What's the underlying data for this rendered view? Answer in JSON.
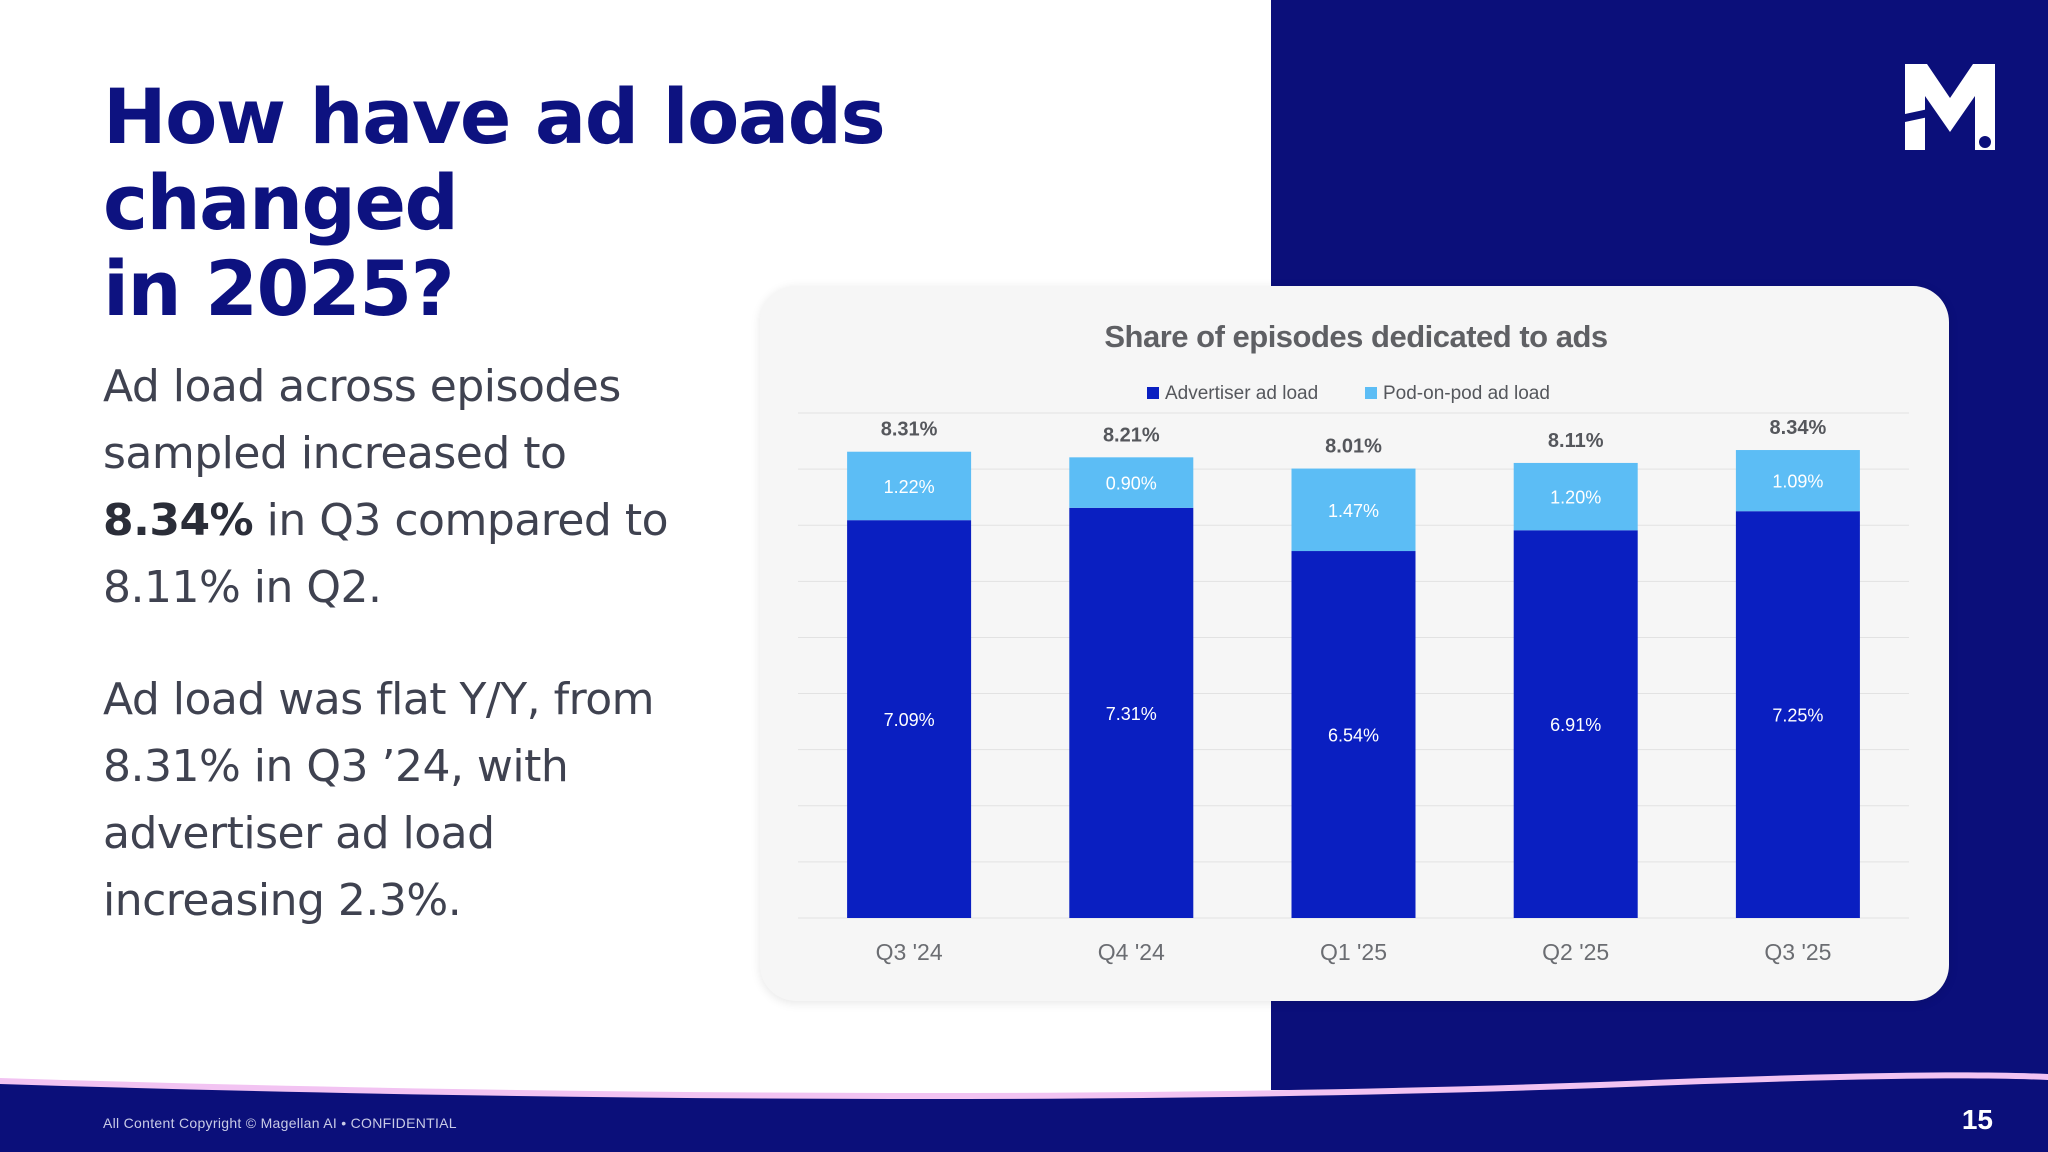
{
  "slide": {
    "title_line1": "How have ad loads changed",
    "title_line2": "in 2025?",
    "para1": {
      "line1": "Ad load across episodes",
      "line2": "sampled increased to",
      "bold": "8.34%",
      "line3_rest": " in Q3 compared to",
      "line4": "8.11% in Q2."
    },
    "para2": {
      "line1": "Ad load was flat Y/Y, from",
      "line2": "8.31% in Q3 ’24, with",
      "line3": "advertiser ad load",
      "line4": "increasing 2.3%."
    },
    "logo_icon": "magellan-m-logo",
    "footer": "All Content Copyright © Magellan AI • CONFIDENTIAL",
    "page_number": "15",
    "colors": {
      "navy": "#0b0f7a",
      "title": "#0d1280",
      "advertiser": "#0a1fc1",
      "pod": "#5cbdf5"
    }
  },
  "chart_data": {
    "type": "bar",
    "stacked": true,
    "title": "Share of episodes dedicated to ads",
    "categories": [
      "Q3 '24",
      "Q4 '24",
      "Q1 '25",
      "Q2 '25",
      "Q3 '25"
    ],
    "series": [
      {
        "name": "Advertiser ad load",
        "values": [
          7.09,
          7.31,
          6.54,
          6.91,
          7.25
        ],
        "labels": [
          "7.09%",
          "7.31%",
          "6.54%",
          "6.91%",
          "7.25%"
        ],
        "color": "#0a1fc1"
      },
      {
        "name": "Pod-on-pod ad load",
        "values": [
          1.22,
          0.9,
          1.47,
          1.2,
          1.09
        ],
        "labels": [
          "1.22%",
          "0.90%",
          "1.47%",
          "1.20%",
          "1.09%"
        ],
        "color": "#5cbdf5"
      }
    ],
    "totals": [
      "8.31%",
      "8.21%",
      "8.01%",
      "8.11%",
      "8.34%"
    ],
    "ylim": [
      0,
      9
    ],
    "grid": true,
    "legend": "top-center"
  }
}
